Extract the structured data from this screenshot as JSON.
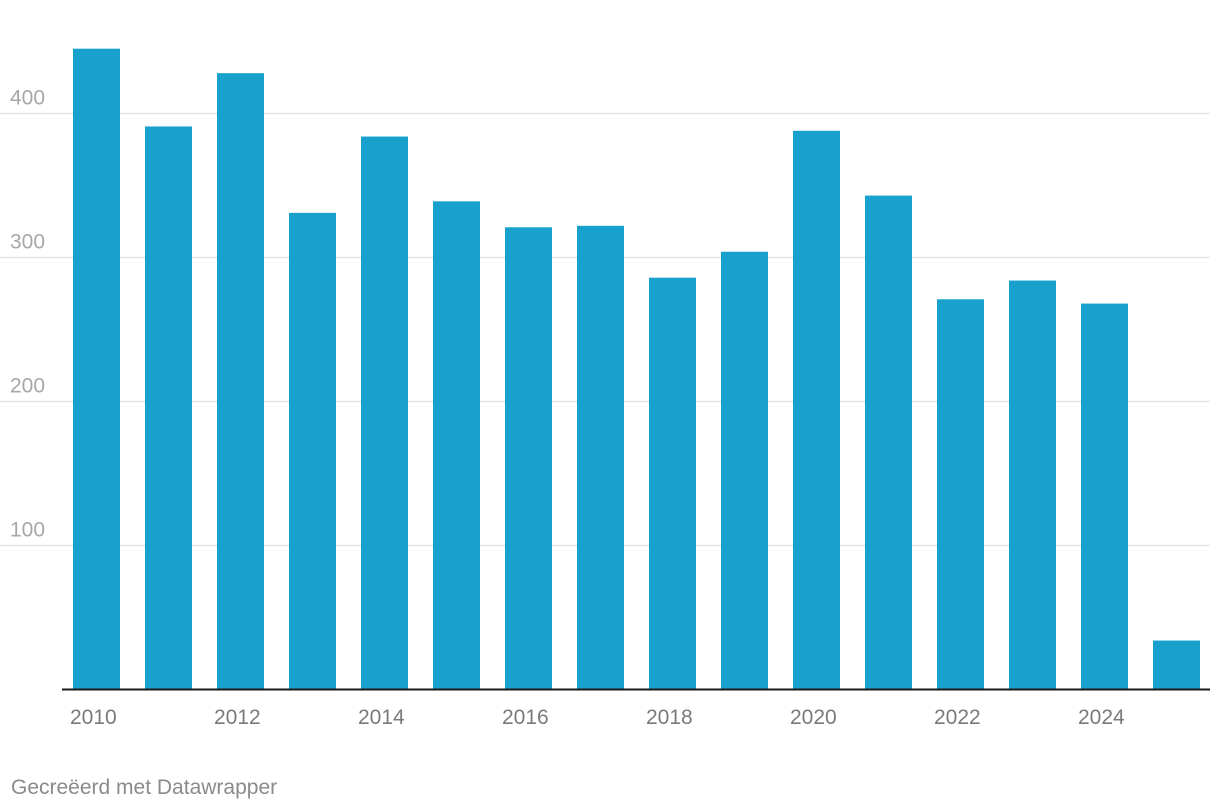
{
  "chart_data": {
    "type": "bar",
    "title": "",
    "xlabel": "",
    "ylabel": "",
    "categories": [
      "2010",
      "2011",
      "2012",
      "2013",
      "2014",
      "2015",
      "2016",
      "2017",
      "2018",
      "2019",
      "2020",
      "2021",
      "2022",
      "2023",
      "2024",
      "2025"
    ],
    "values": [
      445,
      391,
      428,
      331,
      384,
      339,
      321,
      322,
      286,
      304,
      388,
      343,
      271,
      284,
      268,
      34
    ],
    "x_tick_labels": [
      "2010",
      "2012",
      "2014",
      "2016",
      "2018",
      "2020",
      "2022",
      "2024"
    ],
    "y_ticks": [
      100,
      200,
      300,
      400
    ],
    "ylim": [
      0,
      460
    ],
    "grid": true,
    "colors": {
      "bar": "#18a1cd",
      "grid": "#e3e3e3",
      "axis": "#1a1a1a",
      "tick_text": "#a7a7a7",
      "x_tick_text": "#7a7a7a"
    }
  },
  "credit": "Gecreëerd met Datawrapper"
}
